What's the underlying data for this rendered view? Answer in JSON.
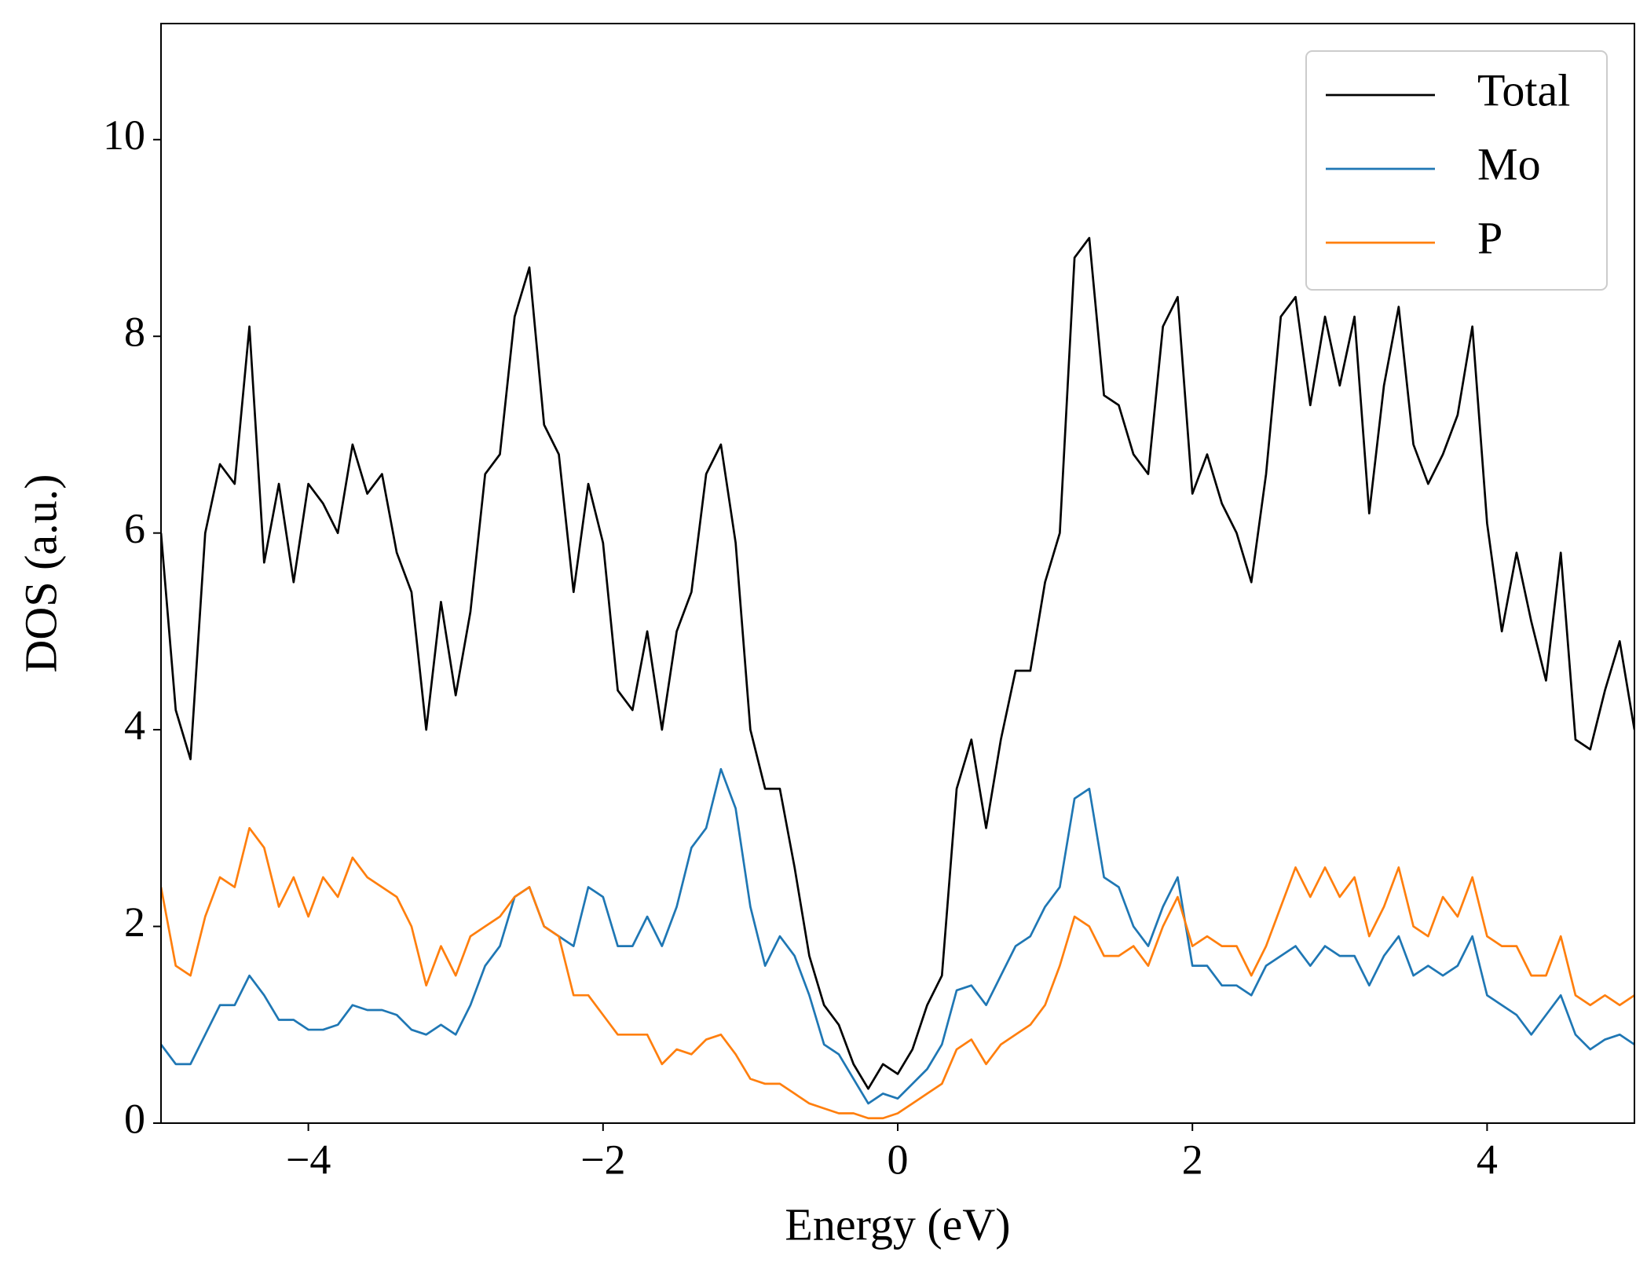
{
  "chart_data": {
    "type": "line",
    "xlabel": "Energy (eV)",
    "ylabel": "DOS (a.u.)",
    "xlim": [
      -5,
      5
    ],
    "ylim": [
      0,
      11.18
    ],
    "xticks": [
      {
        "value": -4,
        "label": "−4"
      },
      {
        "value": -2,
        "label": "−2"
      },
      0,
      2,
      4
    ],
    "yticks": [
      0,
      2,
      4,
      6,
      8,
      10
    ],
    "grid": false,
    "legend": "upper right",
    "x": [
      -5.0,
      -4.9,
      -4.8,
      -4.7,
      -4.6,
      -4.5,
      -4.4,
      -4.3,
      -4.2,
      -4.1,
      -4.0,
      -3.9,
      -3.8,
      -3.7,
      -3.6,
      -3.5,
      -3.4,
      -3.3,
      -3.2,
      -3.1,
      -3.0,
      -2.9,
      -2.8,
      -2.7,
      -2.6,
      -2.5,
      -2.4,
      -2.3,
      -2.2,
      -2.1,
      -2.0,
      -1.9,
      -1.8,
      -1.7,
      -1.6,
      -1.5,
      -1.4,
      -1.3,
      -1.2,
      -1.1,
      -1.0,
      -0.9,
      -0.8,
      -0.7,
      -0.6,
      -0.5,
      -0.4,
      -0.3,
      -0.2,
      -0.1,
      0.0,
      0.1,
      0.2,
      0.3,
      0.4,
      0.5,
      0.6,
      0.7,
      0.8,
      0.9,
      1.0,
      1.1,
      1.2,
      1.3,
      1.4,
      1.5,
      1.6,
      1.7,
      1.8,
      1.9,
      2.0,
      2.1,
      2.2,
      2.3,
      2.4,
      2.5,
      2.6,
      2.7,
      2.8,
      2.9,
      3.0,
      3.1,
      3.2,
      3.3,
      3.4,
      3.5,
      3.6,
      3.7,
      3.8,
      3.9,
      4.0,
      4.1,
      4.2,
      4.3,
      4.4,
      4.5,
      4.6,
      4.7,
      4.8,
      4.9,
      5.0
    ],
    "series": [
      {
        "name": "Total",
        "color": "#000000",
        "values": [
          6.0,
          4.2,
          3.7,
          6.0,
          6.7,
          6.5,
          8.1,
          5.7,
          6.5,
          5.5,
          6.5,
          6.3,
          6.0,
          6.9,
          6.4,
          6.6,
          5.8,
          5.4,
          4.0,
          5.3,
          4.35,
          5.2,
          6.6,
          6.8,
          8.2,
          8.7,
          7.1,
          6.8,
          5.4,
          6.5,
          5.9,
          4.4,
          4.2,
          5.0,
          4.0,
          5.0,
          5.4,
          6.6,
          6.9,
          5.9,
          4.0,
          3.4,
          3.4,
          2.6,
          1.7,
          1.2,
          1.0,
          0.6,
          0.35,
          0.6,
          0.5,
          0.75,
          1.2,
          1.5,
          3.4,
          3.9,
          3.0,
          3.9,
          4.6,
          4.6,
          5.5,
          6.0,
          8.8,
          9.0,
          7.4,
          7.3,
          6.8,
          6.6,
          8.1,
          8.4,
          6.4,
          6.8,
          6.3,
          6.0,
          5.5,
          6.6,
          8.2,
          8.4,
          7.3,
          8.2,
          7.5,
          8.2,
          6.2,
          7.5,
          8.3,
          6.9,
          6.5,
          6.8,
          7.2,
          8.1,
          6.1,
          5.0,
          5.8,
          5.1,
          4.5,
          5.8,
          3.9,
          3.8,
          4.4,
          4.9,
          4.0
        ]
      },
      {
        "name": "Mo",
        "color": "#1f77b4",
        "values": [
          0.8,
          0.6,
          0.6,
          0.9,
          1.2,
          1.2,
          1.5,
          1.3,
          1.05,
          1.05,
          0.95,
          0.95,
          1.0,
          1.2,
          1.15,
          1.15,
          1.1,
          0.95,
          0.9,
          1.0,
          0.9,
          1.2,
          1.6,
          1.8,
          2.3,
          2.4,
          2.0,
          1.9,
          1.8,
          2.4,
          2.3,
          1.8,
          1.8,
          2.1,
          1.8,
          2.2,
          2.8,
          3.0,
          3.6,
          3.2,
          2.2,
          1.6,
          1.9,
          1.7,
          1.3,
          0.8,
          0.7,
          0.45,
          0.2,
          0.3,
          0.25,
          0.4,
          0.55,
          0.8,
          1.35,
          1.4,
          1.2,
          1.5,
          1.8,
          1.9,
          2.2,
          2.4,
          3.3,
          3.4,
          2.5,
          2.4,
          2.0,
          1.8,
          2.2,
          2.5,
          1.6,
          1.6,
          1.4,
          1.4,
          1.3,
          1.6,
          1.7,
          1.8,
          1.6,
          1.8,
          1.7,
          1.7,
          1.4,
          1.7,
          1.9,
          1.5,
          1.6,
          1.5,
          1.6,
          1.9,
          1.3,
          1.2,
          1.1,
          0.9,
          1.1,
          1.3,
          0.9,
          0.75,
          0.85,
          0.9,
          0.8
        ]
      },
      {
        "name": "P",
        "color": "#ff7f0e",
        "values": [
          2.4,
          1.6,
          1.5,
          2.1,
          2.5,
          2.4,
          3.0,
          2.8,
          2.2,
          2.5,
          2.1,
          2.5,
          2.3,
          2.7,
          2.5,
          2.4,
          2.3,
          2.0,
          1.4,
          1.8,
          1.5,
          1.9,
          2.0,
          2.1,
          2.3,
          2.4,
          2.0,
          1.9,
          1.3,
          1.3,
          1.1,
          0.9,
          0.9,
          0.9,
          0.6,
          0.75,
          0.7,
          0.85,
          0.9,
          0.7,
          0.45,
          0.4,
          0.4,
          0.3,
          0.2,
          0.15,
          0.1,
          0.1,
          0.05,
          0.05,
          0.1,
          0.2,
          0.3,
          0.4,
          0.75,
          0.85,
          0.6,
          0.8,
          0.9,
          1.0,
          1.2,
          1.6,
          2.1,
          2.0,
          1.7,
          1.7,
          1.8,
          1.6,
          2.0,
          2.3,
          1.8,
          1.9,
          1.8,
          1.8,
          1.5,
          1.8,
          2.2,
          2.6,
          2.3,
          2.6,
          2.3,
          2.5,
          1.9,
          2.2,
          2.6,
          2.0,
          1.9,
          2.3,
          2.1,
          2.5,
          1.9,
          1.8,
          1.8,
          1.5,
          1.5,
          1.9,
          1.3,
          1.2,
          1.3,
          1.2,
          1.3
        ]
      }
    ]
  }
}
